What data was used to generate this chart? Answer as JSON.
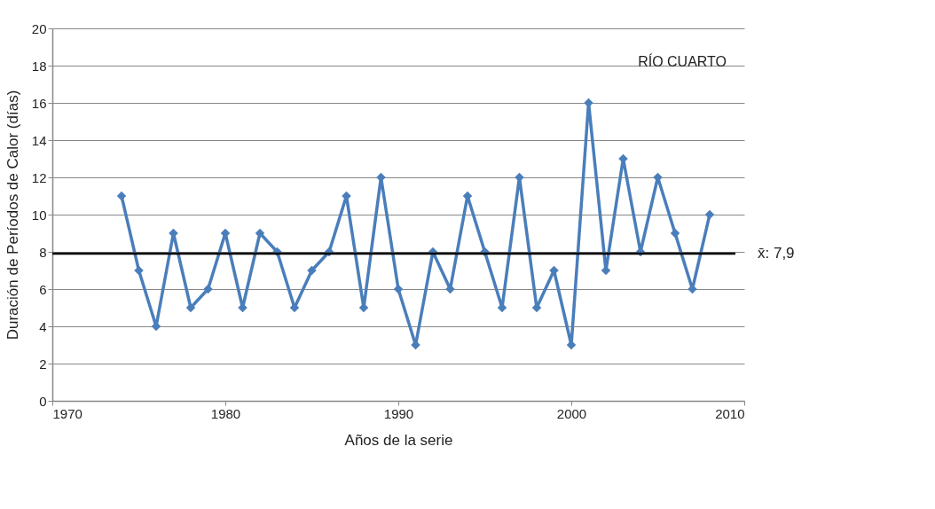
{
  "chart_data": {
    "type": "line",
    "xlabel": "Años de la serie",
    "ylabel": "Duración de Períodos de Calor (días)",
    "annotations": [
      "RÍO CUARTO"
    ],
    "x": [
      1974,
      1975,
      1976,
      1977,
      1978,
      1979,
      1980,
      1981,
      1982,
      1983,
      1984,
      1985,
      1986,
      1987,
      1988,
      1989,
      1990,
      1991,
      1992,
      1993,
      1994,
      1995,
      1996,
      1997,
      1998,
      1999,
      2000,
      2001,
      2002,
      2003,
      2004,
      2005,
      2006,
      2007,
      2008
    ],
    "series": [
      {
        "color": "#4a7ebb",
        "values": [
          11,
          7,
          4,
          9,
          5,
          6,
          9,
          5,
          9,
          8,
          5,
          7,
          8,
          11,
          5,
          12,
          6,
          3,
          8,
          6,
          11,
          8,
          5,
          12,
          5,
          7,
          3,
          16,
          7,
          13,
          8,
          12,
          9,
          6,
          10
        ]
      }
    ],
    "xlim": [
      1970,
      2010
    ],
    "xticks": [
      1970,
      1980,
      1990,
      2000,
      2010
    ],
    "ylim": [
      0,
      20
    ],
    "yticks": [
      0,
      2,
      4,
      6,
      8,
      10,
      12,
      14,
      16,
      18,
      20
    ],
    "grid": "y",
    "marker": "diamond",
    "line_style": "solid",
    "ref_lines": [
      {
        "axis": "y",
        "value": 7.9,
        "label": "x̄: 7,9",
        "color": "#000000"
      }
    ]
  }
}
